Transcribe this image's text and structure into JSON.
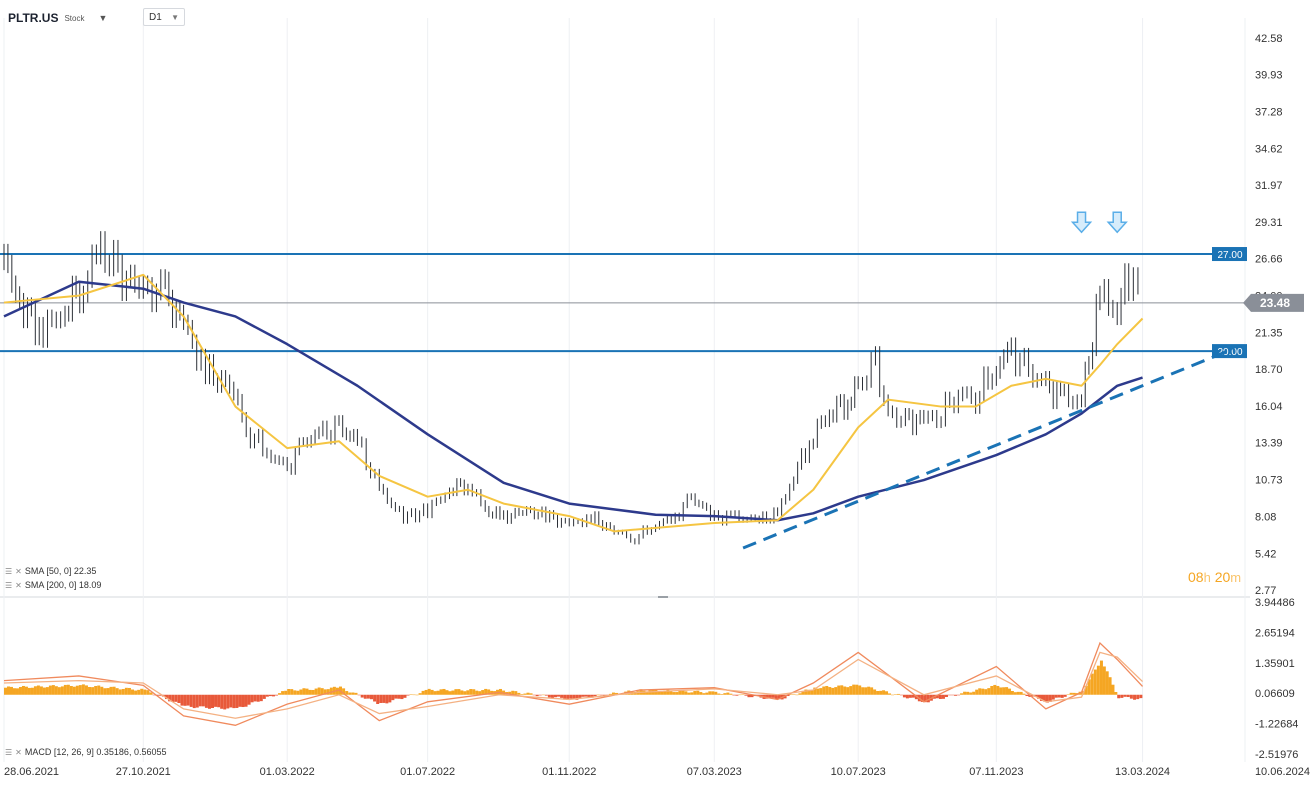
{
  "header": {
    "symbol": "PLTR.US",
    "type_label": "Stock",
    "timeframe": "D1",
    "dropdown_icon": "caret-down-icon"
  },
  "legend": {
    "sma50": "SMA [50, 0]  22.35",
    "sma200": "SMA [200, 0]  18.09",
    "macd": "MACD [12, 26, 9]  0.35186,  0.56055"
  },
  "timer": {
    "hours": "08",
    "h": "h",
    "minutes": "20",
    "m": "m"
  },
  "chart_data": {
    "type": "candlestick",
    "symbol": "PLTR.US",
    "timeframe": "D1",
    "x_ticks": [
      "28.06.2021",
      "27.10.2021",
      "01.03.2022",
      "01.07.2022",
      "01.11.2022",
      "07.03.2023",
      "10.07.2023",
      "07.11.2023",
      "13.03.2024",
      "10.06.2024"
    ],
    "y_ticks": [
      "42.58",
      "39.93",
      "37.28",
      "34.62",
      "31.97",
      "29.31",
      "26.66",
      "24.00",
      "21.35",
      "18.70",
      "16.04",
      "13.39",
      "10.73",
      "8.08",
      "5.42",
      "2.77"
    ],
    "ylim": [
      2.77,
      42.58
    ],
    "price": {
      "x": [
        "28.06.2021",
        "15.07.2021",
        "01.08.2021",
        "20.08.2021",
        "05.09.2021",
        "20.09.2021",
        "05.10.2021",
        "27.10.2021",
        "15.11.2021",
        "01.12.2021",
        "20.12.2021",
        "10.01.2022",
        "28.01.2022",
        "15.02.2022",
        "01.03.2022",
        "15.03.2022",
        "01.04.2022",
        "15.04.2022",
        "01.05.2022",
        "20.05.2022",
        "10.06.2022",
        "01.07.2022",
        "20.07.2022",
        "05.08.2022",
        "20.08.2022",
        "05.09.2022",
        "25.09.2022",
        "15.10.2022",
        "01.11.2022",
        "20.11.2022",
        "10.12.2022",
        "28.12.2022",
        "15.01.2023",
        "01.02.2023",
        "15.02.2023",
        "07.03.2023",
        "25.03.2023",
        "15.04.2023",
        "01.05.2023",
        "15.05.2023",
        "01.06.2023",
        "15.06.2023",
        "01.07.2023",
        "10.07.2023",
        "25.07.2023",
        "05.08.2023",
        "20.08.2023",
        "05.09.2023",
        "20.09.2023",
        "05.10.2023",
        "20.10.2023",
        "07.11.2023",
        "20.11.2023",
        "05.12.2023",
        "20.12.2023",
        "05.01.2024",
        "20.01.2024",
        "05.02.2024",
        "20.02.2024",
        "01.03.2024",
        "13.03.2024"
      ],
      "close": [
        26.5,
        23,
        21.5,
        23,
        25,
        27.5,
        25.5,
        24.5,
        24,
        22,
        18.5,
        17.5,
        14,
        12.5,
        11.5,
        13.5,
        14,
        14.5,
        13.5,
        10,
        8,
        8.5,
        10,
        10.5,
        8.5,
        8,
        8.5,
        8,
        7.5,
        8,
        7,
        6.5,
        7.5,
        8,
        9.5,
        8,
        8,
        7.8,
        8.2,
        11,
        14,
        15.5,
        16.5,
        17.5,
        19,
        15.5,
        15,
        15,
        15.5,
        17,
        16.5,
        19,
        20,
        18.5,
        17.5,
        16.5,
        16.5,
        24,
        23,
        25.5,
        23.5
      ]
    },
    "sma50": {
      "x": [
        "28.06.2021",
        "01.09.2021",
        "27.10.2021",
        "01.12.2021",
        "15.01.2022",
        "01.03.2022",
        "15.04.2022",
        "20.05.2022",
        "01.07.2022",
        "05.08.2022",
        "05.09.2022",
        "01.11.2022",
        "10.12.2022",
        "07.03.2023",
        "01.05.2023",
        "01.06.2023",
        "10.07.2023",
        "05.08.2023",
        "20.09.2023",
        "20.10.2023",
        "20.11.2023",
        "20.12.2023",
        "20.01.2024",
        "05.02.2024",
        "20.02.2024",
        "13.03.2024"
      ],
      "y": [
        23.5,
        24,
        25.5,
        22.5,
        16,
        13,
        13.5,
        11,
        9.5,
        10,
        9,
        8.1,
        7,
        7.6,
        7.8,
        10,
        14.5,
        16.5,
        16,
        16,
        17.5,
        18,
        17.5,
        19,
        20.5,
        22.35
      ]
    },
    "sma200": {
      "x": [
        "28.06.2021",
        "01.09.2021",
        "27.10.2021",
        "01.12.2021",
        "15.01.2022",
        "01.03.2022",
        "01.05.2022",
        "01.07.2022",
        "05.09.2022",
        "01.11.2022",
        "15.01.2023",
        "07.03.2023",
        "01.05.2023",
        "01.06.2023",
        "10.07.2023",
        "05.09.2023",
        "07.11.2023",
        "20.12.2023",
        "20.01.2024",
        "20.02.2024",
        "13.03.2024"
      ],
      "y": [
        22.5,
        25,
        24.5,
        23.5,
        22.5,
        20.5,
        17.5,
        14,
        10.5,
        9,
        8.2,
        8.1,
        7.8,
        8.3,
        9.5,
        10.7,
        12.5,
        14,
        15.5,
        17.5,
        18.09
      ]
    },
    "hlines": [
      {
        "label": "27.00",
        "value": 27.0
      },
      {
        "label": "20.00",
        "value": 20.0
      }
    ],
    "last_price": {
      "label": "23.48",
      "value": 23.48
    },
    "trendline": {
      "x": [
        "01.04.2023",
        "01.06.2024"
      ],
      "y": [
        5.8,
        20.2
      ]
    },
    "arrows": [
      {
        "x": "20.01.2024",
        "value": 29.0
      },
      {
        "x": "20.02.2024",
        "value": 29.0
      }
    ],
    "macd": {
      "y_ticks": [
        "3.94486",
        "2.65194",
        "1.35901",
        "0.06609",
        "-1.22684",
        "-2.51976"
      ],
      "ylim": [
        -2.51976,
        3.94486
      ],
      "x": [
        "28.06.2021",
        "01.09.2021",
        "27.10.2021",
        "01.12.2021",
        "15.01.2022",
        "01.03.2022",
        "15.04.2022",
        "20.05.2022",
        "01.07.2022",
        "01.09.2022",
        "01.11.2022",
        "01.01.2023",
        "07.03.2023",
        "01.05.2023",
        "01.06.2023",
        "10.07.2023",
        "05.09.2023",
        "07.11.2023",
        "20.12.2023",
        "20.01.2024",
        "05.02.2024",
        "20.02.2024",
        "13.03.2024"
      ],
      "macd": [
        0.6,
        0.8,
        0.4,
        -0.9,
        -1.3,
        -0.4,
        0.2,
        -1.1,
        -0.3,
        0.1,
        -0.4,
        0.2,
        0.3,
        -0.2,
        0.5,
        1.8,
        -0.3,
        1.2,
        -0.6,
        0.1,
        2.2,
        1.5,
        0.35186
      ],
      "signal": [
        0.5,
        0.6,
        0.5,
        -0.6,
        -1.0,
        -0.6,
        0.0,
        -0.8,
        -0.5,
        0.0,
        -0.2,
        0.1,
        0.25,
        0.0,
        0.2,
        1.5,
        0.0,
        0.8,
        -0.3,
        -0.1,
        1.8,
        1.6,
        0.56055
      ],
      "hist": [
        0.3,
        0.4,
        0.2,
        -0.5,
        -0.6,
        0.2,
        0.3,
        -0.4,
        0.2,
        0.2,
        -0.2,
        0.2,
        0.1,
        -0.2,
        0.3,
        0.4,
        -0.3,
        0.4,
        -0.3,
        0.2,
        1.5,
        -0.1,
        -0.2
      ]
    },
    "colors": {
      "sma50": "#f5c542",
      "sma200": "#2d3a8c",
      "hline": "#1a73b5",
      "trendline": "#1a73b5",
      "last_price_bg": "#8a8f98",
      "macd_pos": "#f5a623",
      "macd_neg": "#e8593a",
      "candle": "#2b2f36",
      "arrow": "#5aaee8"
    }
  }
}
